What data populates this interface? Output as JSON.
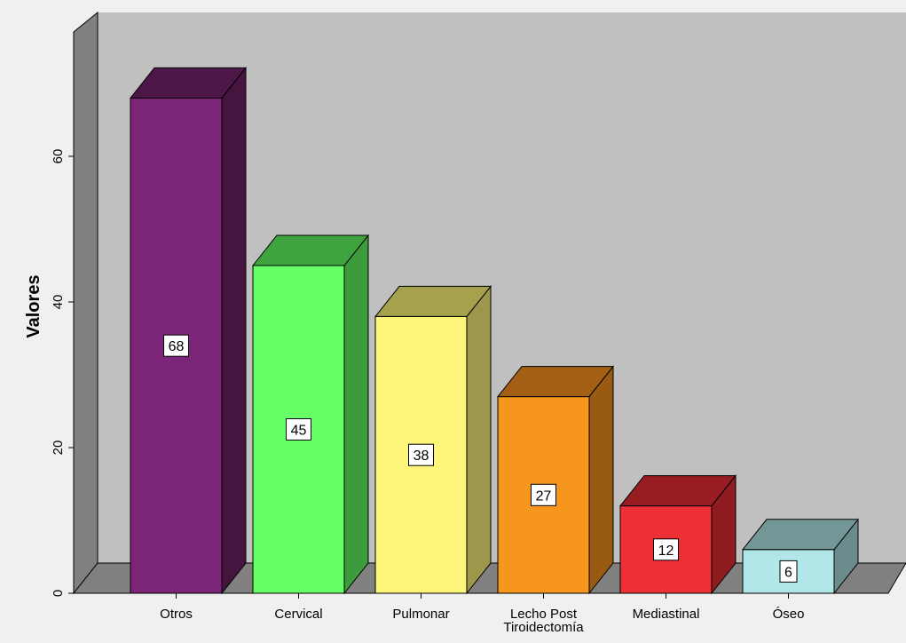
{
  "chart_data": {
    "type": "bar",
    "title": "",
    "xlabel": "",
    "ylabel": "Valores",
    "categories": [
      "Otros",
      "Cervical",
      "Pulmonar",
      [
        "Lecho Post",
        "Tiroidectomía"
      ],
      "Mediastinal",
      "Óseo"
    ],
    "values": [
      68,
      45,
      38,
      27,
      12,
      6
    ],
    "ylim": [
      0,
      80
    ],
    "yticks": [
      0,
      20,
      40,
      60
    ],
    "bar_colors": [
      {
        "front": "#7b2478",
        "side": "#45143f",
        "top": "#4d1747"
      },
      {
        "front": "#66ff66",
        "side": "#3d9a3d",
        "top": "#3fa33f"
      },
      {
        "front": "#fdf67a",
        "side": "#9c974a",
        "top": "#a6a14d"
      },
      {
        "front": "#f7961d",
        "side": "#995a12",
        "top": "#a35f13"
      },
      {
        "front": "#ee2f36",
        "side": "#8e1c21",
        "top": "#971d23"
      },
      {
        "front": "#b2e7e9",
        "side": "#6b8b8c",
        "top": "#739697"
      }
    ],
    "background_color": "#c0c0c0",
    "floor_color": "#808080",
    "wall_color": "#808080",
    "grid": false,
    "legend": "none",
    "data_labels": true,
    "style": "3d-bar"
  }
}
